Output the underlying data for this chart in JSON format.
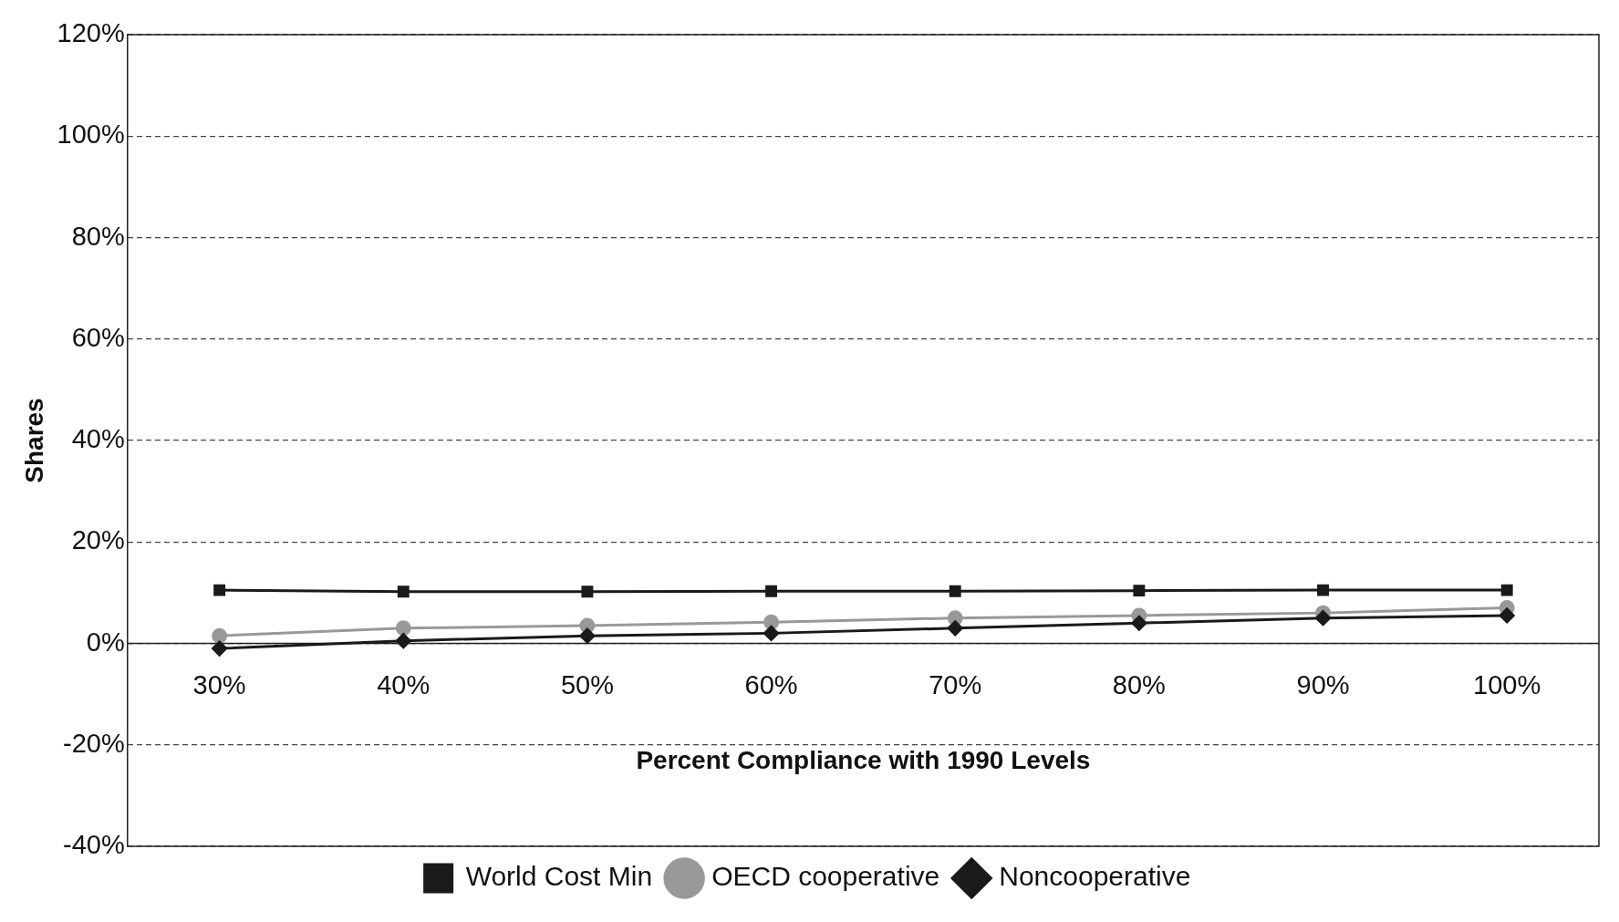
{
  "chart_data": {
    "type": "line",
    "xlabel": "Percent Compliance with 1990 Levels",
    "ylabel": "Shares",
    "categories": [
      "30%",
      "40%",
      "50%",
      "60%",
      "70%",
      "80%",
      "90%",
      "100%"
    ],
    "series": [
      {
        "name": "World Cost Min",
        "color": "#1a1a1a",
        "marker": "square",
        "values": [
          10.5,
          10.2,
          10.2,
          10.3,
          10.3,
          10.4,
          10.5,
          10.5
        ]
      },
      {
        "name": "OECD cooperative",
        "color": "#999999",
        "marker": "circle",
        "values": [
          1.5,
          3,
          3.5,
          4.2,
          5,
          5.5,
          6,
          7
        ]
      },
      {
        "name": "Noncooperative",
        "color": "#1a1a1a",
        "marker": "diamond",
        "values": [
          -1,
          0.5,
          1.5,
          2,
          3,
          4,
          5,
          5.5
        ]
      }
    ],
    "ylim": [
      -40,
      120
    ],
    "yticks": [
      {
        "value": -40,
        "label": "-40%"
      },
      {
        "value": -20,
        "label": "-20%"
      },
      {
        "value": 0,
        "label": "0%"
      },
      {
        "value": 20,
        "label": "20%"
      },
      {
        "value": 40,
        "label": "40%"
      },
      {
        "value": 60,
        "label": "60%"
      },
      {
        "value": 80,
        "label": "80%"
      },
      {
        "value": 100,
        "label": "100%"
      },
      {
        "value": 120,
        "label": "120%"
      }
    ],
    "grid": "y",
    "legend": "bottom",
    "line_style": "solid"
  }
}
